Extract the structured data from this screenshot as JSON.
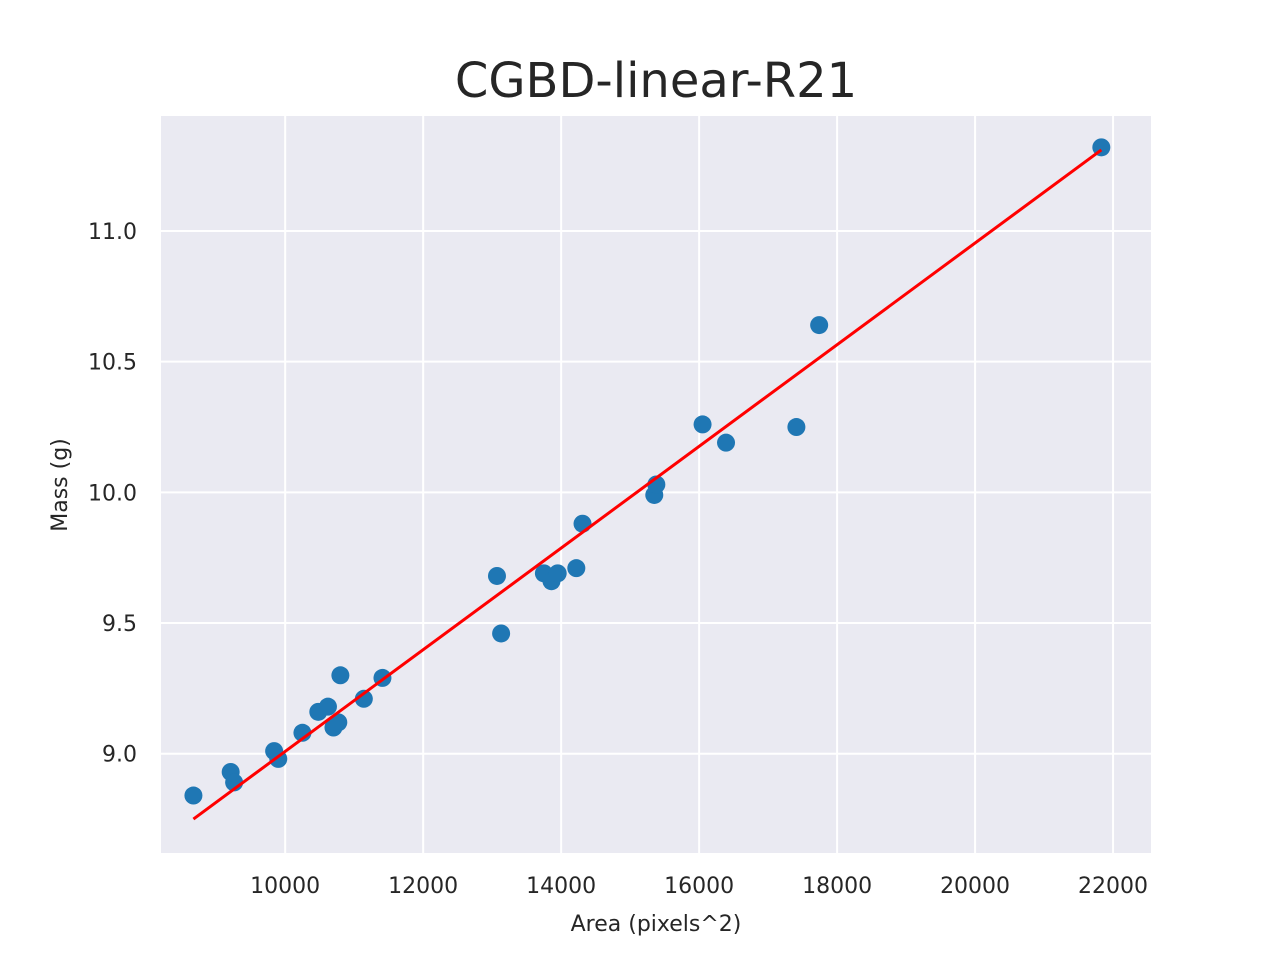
{
  "chart_data": {
    "type": "scatter",
    "title": "CGBD-linear-R21",
    "xlabel": "Area (pixels^2)",
    "ylabel": "Mass (g)",
    "xlim": [
      8200,
      22550
    ],
    "ylim": [
      8.62,
      11.44
    ],
    "xticks": [
      10000,
      12000,
      14000,
      16000,
      18000,
      20000,
      22000
    ],
    "xtick_labels": [
      "10000",
      "12000",
      "14000",
      "16000",
      "18000",
      "20000",
      "22000"
    ],
    "yticks": [
      9.0,
      9.5,
      10.0,
      10.5,
      11.0
    ],
    "ytick_labels": [
      "9.0",
      "9.5",
      "10.0",
      "10.5",
      "11.0"
    ],
    "grid": true,
    "series": [
      {
        "kind": "scatter",
        "color": "#1f77b4",
        "points": [
          [
            8670,
            8.84
          ],
          [
            9210,
            8.93
          ],
          [
            9260,
            8.89
          ],
          [
            9840,
            9.01
          ],
          [
            9900,
            8.98
          ],
          [
            10250,
            9.08
          ],
          [
            10480,
            9.16
          ],
          [
            10620,
            9.18
          ],
          [
            10700,
            9.1
          ],
          [
            10770,
            9.12
          ],
          [
            10800,
            9.3
          ],
          [
            11140,
            9.21
          ],
          [
            11410,
            9.29
          ],
          [
            13070,
            9.68
          ],
          [
            13130,
            9.46
          ],
          [
            13750,
            9.69
          ],
          [
            13860,
            9.66
          ],
          [
            13950,
            9.69
          ],
          [
            14220,
            9.71
          ],
          [
            14310,
            9.88
          ],
          [
            15350,
            9.99
          ],
          [
            15380,
            10.03
          ],
          [
            16050,
            10.26
          ],
          [
            16390,
            10.19
          ],
          [
            17410,
            10.25
          ],
          [
            17740,
            10.64
          ],
          [
            21830,
            11.32
          ]
        ]
      },
      {
        "kind": "line",
        "color": "#ff0000",
        "points": [
          [
            8670,
            8.75
          ],
          [
            21830,
            11.31
          ]
        ]
      }
    ]
  }
}
